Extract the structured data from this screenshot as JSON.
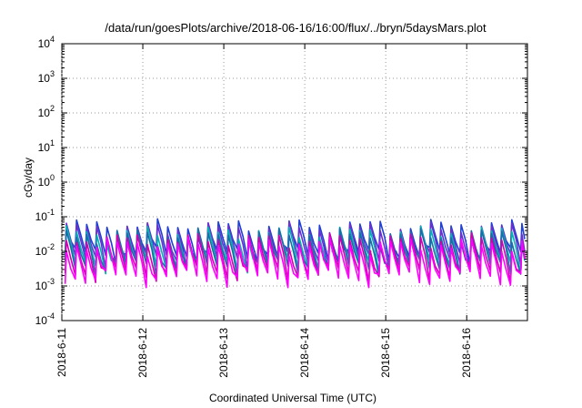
{
  "chart_data": {
    "type": "line",
    "title": "/data/run/goesPlots/archive/2018-06-16/16:00/flux/../bryn/5daysMars.plot",
    "xlabel": "Coordinated Universal Time (UTC)",
    "ylabel": "cGy/day",
    "yscale": "log",
    "ylim": [
      0.0001,
      10000
    ],
    "xlim": [
      "2018-06-11 00:00",
      "2018-06-16 18:00"
    ],
    "grid": true,
    "x_ticks": [
      "2018-6-11",
      "2018-6-12",
      "2018-6-13",
      "2018-6-14",
      "2018-6-15",
      "2018-6-16"
    ],
    "y_ticks": [
      {
        "base": "10",
        "exp": "-4",
        "value": 0.0001
      },
      {
        "base": "10",
        "exp": "-3",
        "value": 0.001
      },
      {
        "base": "10",
        "exp": "-2",
        "value": 0.01
      },
      {
        "base": "10",
        "exp": "-1",
        "value": 0.1
      },
      {
        "base": "10",
        "exp": "0",
        "value": 1
      },
      {
        "base": "10",
        "exp": "1",
        "value": 10
      },
      {
        "base": "10",
        "exp": "2",
        "value": 100
      },
      {
        "base": "10",
        "exp": "3",
        "value": 1000
      },
      {
        "base": "10",
        "exp": "4",
        "value": 10000
      }
    ],
    "pattern": {
      "period_hours": 3,
      "start": "2018-06-11 01:00",
      "end": "2018-06-16 18:00"
    },
    "series": [
      {
        "color": "#1f3fd6",
        "peak": 0.055,
        "trough": 0.0085
      },
      {
        "color": "#6e2fd0",
        "peak": 0.045,
        "trough": 0.006
      },
      {
        "color": "#00b3b3",
        "peak": 0.035,
        "trough": 0.0045
      },
      {
        "color": "#1a6ea8",
        "peak": 0.03,
        "trough": 0.0038
      },
      {
        "color": "#d200b0",
        "peak": 0.022,
        "trough": 0.0025
      },
      {
        "color": "#ff00ff",
        "peak": 0.016,
        "trough": 0.0018
      }
    ]
  }
}
